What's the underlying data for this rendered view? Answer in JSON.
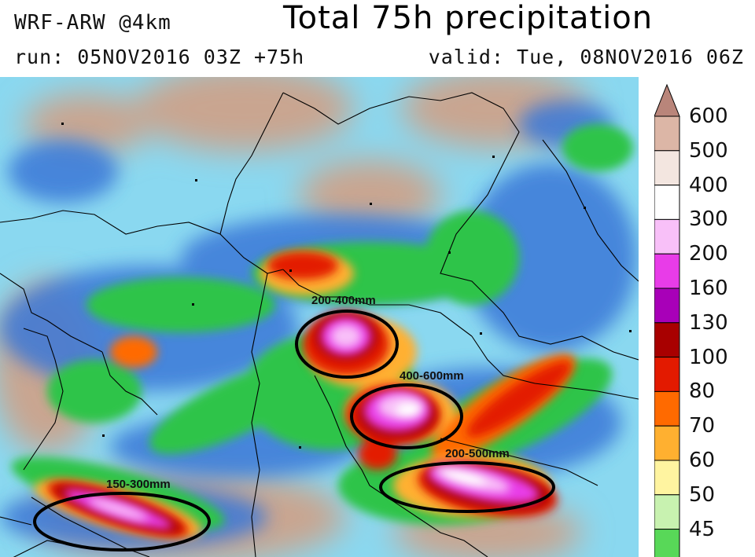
{
  "header": {
    "model": "WRF-ARW @4km",
    "title": "Total 75h precipitation",
    "run": "run: 05NOV2016 03Z +75h",
    "valid": "valid: Tue, 08NOV2016 06Z"
  },
  "annotations": [
    {
      "label": "200-400mm"
    },
    {
      "label": "400-600mm"
    },
    {
      "label": "200-500mm"
    },
    {
      "label": "150-300mm"
    }
  ],
  "legend": {
    "levels": [
      "600",
      "500",
      "400",
      "300",
      "200",
      "160",
      "130",
      "100",
      "80",
      "70",
      "60",
      "50",
      "45"
    ],
    "colors": {
      "600": "#b9857a",
      "500": "#dcb6a6",
      "400": "#f3e6e0",
      "300": "#ffffff",
      "200": "#f8c0f8",
      "160": "#e83ce8",
      "130": "#a800b8",
      "100": "#a80000",
      "80": "#e31a00",
      "70": "#ff6a00",
      "60": "#ffb030",
      "50": "#fff4a0",
      "45": "#c8f2b0",
      "40": "#58d858"
    }
  },
  "palette": {
    "water": "#8ad8f0",
    "land": "#c9a590",
    "blue": "#3a78d8",
    "green": "#2ec44a",
    "outline": "#000000"
  }
}
